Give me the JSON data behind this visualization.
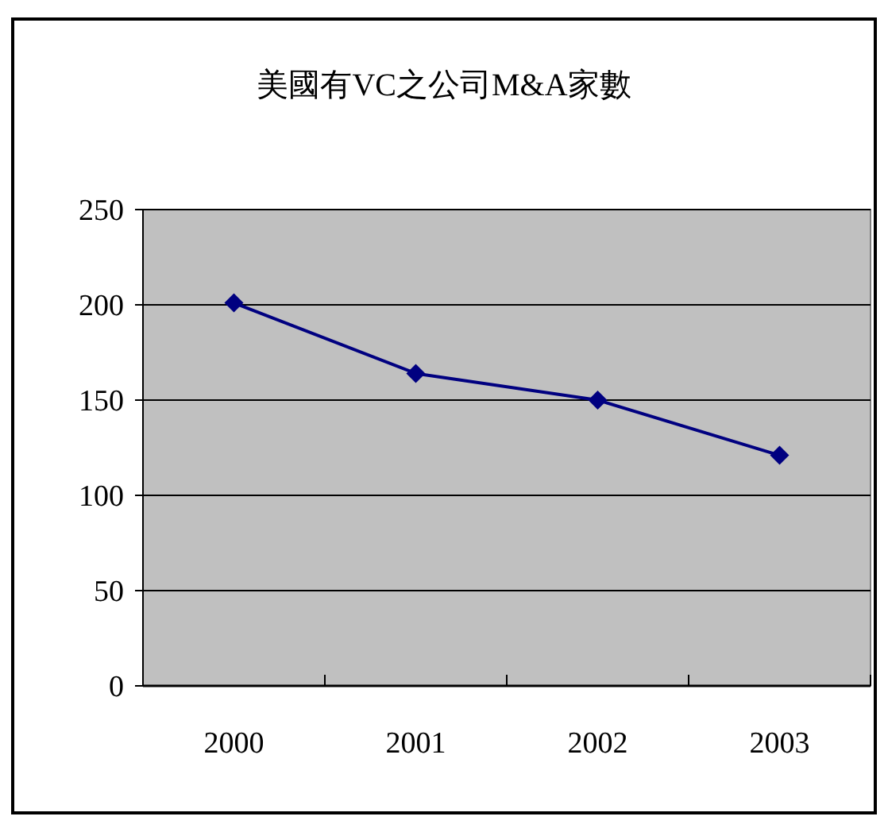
{
  "chart_data": {
    "type": "line",
    "title": "美國有VC之公司M&A家數",
    "categories": [
      "2000",
      "2001",
      "2002",
      "2003"
    ],
    "series": [
      {
        "color": "#000080",
        "values": [
          201,
          164,
          150,
          121
        ]
      }
    ],
    "ylim": [
      0,
      250
    ],
    "yticks": [
      0,
      50,
      100,
      150,
      200,
      250
    ],
    "grid": "y",
    "marker": "diamond"
  }
}
